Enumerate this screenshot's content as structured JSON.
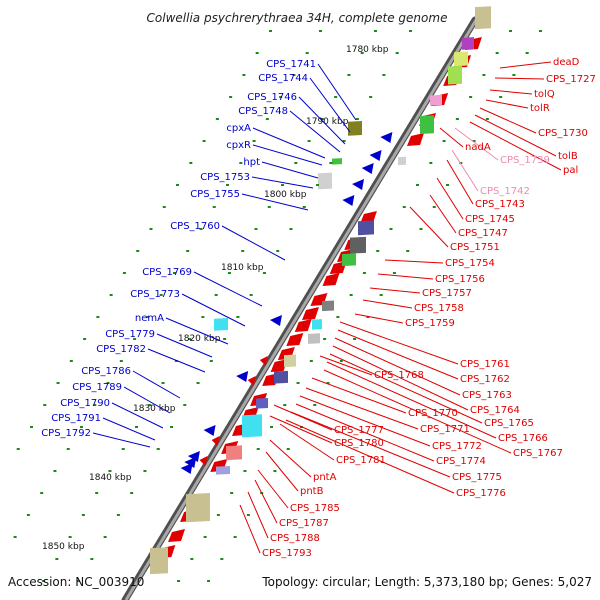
{
  "title": "Colwellia psychrerythraea 34H, complete genome",
  "footer": {
    "accession": "Accession: NC_003910",
    "summary": "Topology: circular; Length: 5,373,180 bp; Genes: 5,027"
  },
  "kbp_ticks": [
    "1780 kbp",
    "1790 kbp",
    "1800 kbp",
    "1810 kbp",
    "1820 kbp",
    "1830 kbp",
    "1840 kbp",
    "1850 kbp"
  ],
  "left_labels": [
    "CPS_1741",
    "CPS_1744",
    "CPS_1746",
    "CPS_1748",
    "cpxA",
    "cpxR",
    "hpt",
    "CPS_1753",
    "CPS_1755",
    "CPS_1760",
    "CPS_1769",
    "CPS_1773",
    "nemA",
    "CPS_1779",
    "CPS_1782",
    "CPS_1786",
    "CPS_1789",
    "CPS_1790",
    "CPS_1791",
    "CPS_1792"
  ],
  "right_labels": [
    "deaD",
    "CPS_1727",
    "tolQ",
    "tolR",
    "CPS_1730",
    "tolB",
    "pal",
    "CPS_1739",
    "nadA",
    "CPS_1742",
    "CPS_1743",
    "CPS_1745",
    "CPS_1747",
    "CPS_1751",
    "CPS_1754",
    "CPS_1756",
    "CPS_1757",
    "CPS_1758",
    "CPS_1759",
    "CPS_1761",
    "CPS_1762",
    "CPS_1763",
    "CPS_1764",
    "CPS_1765",
    "CPS_1766",
    "CPS_1767",
    "CPS_1768",
    "CPS_1770",
    "CPS_1771",
    "CPS_1772",
    "CPS_1774",
    "CPS_1775",
    "CPS_1776",
    "CPS_1777",
    "CPS_1780",
    "CPS_1781",
    "pntA",
    "pntB",
    "CPS_1785",
    "CPS_1787",
    "CPS_1788",
    "CPS_1793"
  ],
  "colors": {
    "backbone": "#808080",
    "reverse_strand": "#0000cc",
    "forward_strand": "#e00000",
    "pink_label": "#f08ab0",
    "tick": "#1a8a1a"
  }
}
